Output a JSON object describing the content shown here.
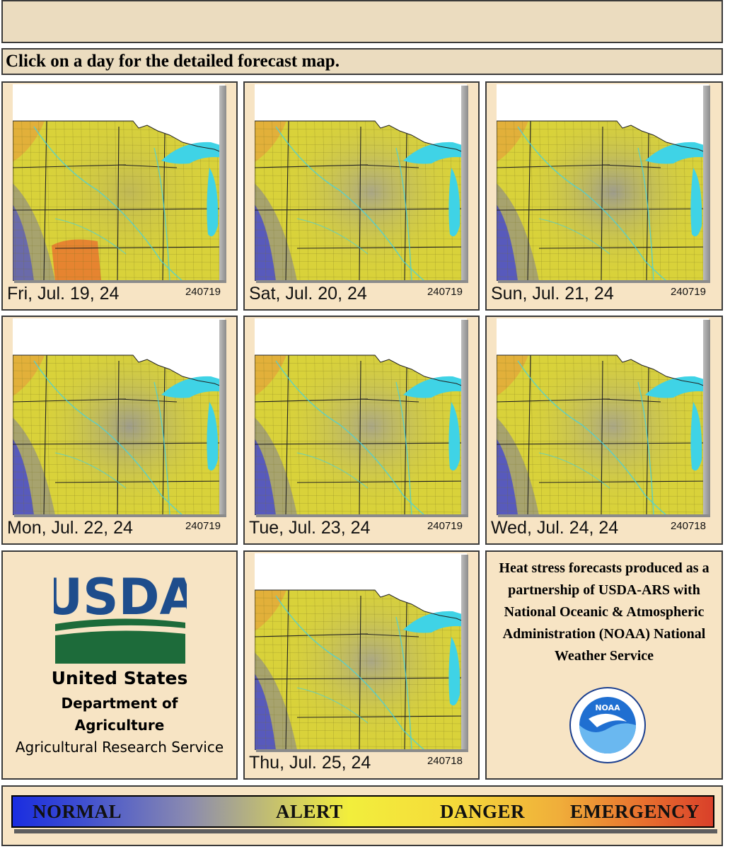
{
  "header": {
    "instruction": "Click on a day for the detailed forecast map."
  },
  "days": [
    {
      "label": "Fri, Jul. 19, 24",
      "code": "240719",
      "tint": "hot"
    },
    {
      "label": "Sat, Jul. 20, 24",
      "code": "240719",
      "tint": "mid"
    },
    {
      "label": "Sun, Jul. 21, 24",
      "code": "240719",
      "tint": "cool"
    },
    {
      "label": "Mon, Jul. 22, 24",
      "code": "240719",
      "tint": "cool"
    },
    {
      "label": "Tue, Jul. 23, 24",
      "code": "240719",
      "tint": "mid"
    },
    {
      "label": "Wed, Jul. 24, 24",
      "code": "240718",
      "tint": "mid"
    },
    {
      "label": "Thu, Jul. 25, 24",
      "code": "240718",
      "tint": "mid"
    }
  ],
  "usda": {
    "logo_text": "USDA",
    "line1": "United States",
    "line2": "Department of",
    "line3": "Agriculture",
    "line4": "Agricultural Research Service"
  },
  "credit": {
    "text": "Heat stress forecasts produced as a partnership of USDA-ARS with National Oceanic & Atmospheric Administration (NOAA) National Weather Service",
    "noaa_logo_text": "NOAA"
  },
  "legend": {
    "normal": "NORMAL",
    "alert": "ALERT",
    "danger": "DANGER",
    "emergency": "EMERGENCY"
  },
  "colors": {
    "panel_bg": "#f7e4c4",
    "header_bg": "#ebdcbf",
    "usda_blue": "#1e4d8c",
    "usda_green": "#1d6b3a",
    "lake": "#3fd3e6",
    "map_yellow": "#d9d23a"
  }
}
